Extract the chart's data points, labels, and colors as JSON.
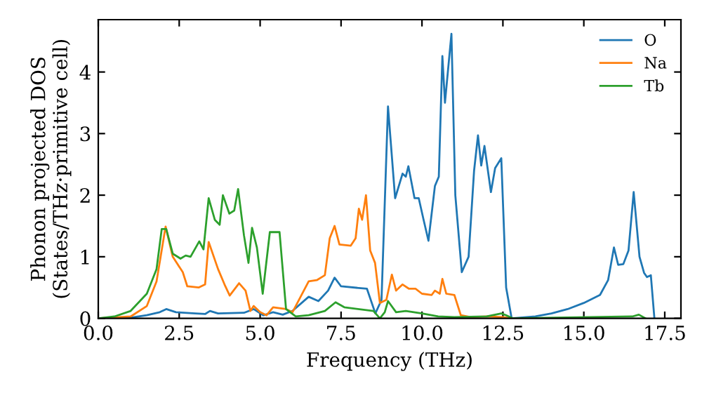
{
  "chart_data": {
    "type": "line",
    "xlabel": "Frequency (THz)",
    "ylabel": "Phonon projected DOS\n(States/THz·primitive cell)",
    "xlim": [
      0,
      18
    ],
    "ylim": [
      0,
      4.85
    ],
    "xticks": [
      {
        "value": 0,
        "label": "0.0"
      },
      2.5,
      {
        "value": 5,
        "label": "5.0"
      },
      7.5,
      {
        "value": 10,
        "label": "10.0"
      },
      12.5,
      {
        "value": 15,
        "label": "15.0"
      },
      17.5
    ],
    "yticks": [
      0,
      1,
      2,
      3,
      4
    ],
    "grid": false,
    "legend": "top right",
    "line_style": "solid",
    "marker": "none",
    "series": [
      {
        "name": "O",
        "color": "#1f77b4",
        "x": [
          0,
          1,
          1.5,
          1.9,
          2.1,
          2.4,
          3,
          3.3,
          3.45,
          3.7,
          4.5,
          4.8,
          5.1,
          5.4,
          5.7,
          6,
          6.5,
          6.8,
          7.1,
          7.3,
          7.5,
          8.3,
          8.56,
          8.75,
          8.95,
          9.17,
          9.4,
          9.5,
          9.58,
          9.77,
          9.9,
          10.05,
          10.2,
          10.4,
          10.52,
          10.63,
          10.71,
          10.91,
          11.03,
          11.23,
          11.44,
          11.61,
          11.73,
          11.83,
          11.93,
          12.13,
          12.26,
          12.45,
          12.6,
          12.77,
          13.5,
          14,
          14.5,
          15,
          15.5,
          15.75,
          15.93,
          16.06,
          16.22,
          16.38,
          16.54,
          16.72,
          16.86,
          16.95,
          17.07,
          17.18
        ],
        "values": [
          0,
          0.01,
          0.05,
          0.1,
          0.15,
          0.1,
          0.08,
          0.07,
          0.12,
          0.08,
          0.09,
          0.15,
          0.05,
          0.1,
          0.06,
          0.12,
          0.35,
          0.28,
          0.45,
          0.66,
          0.52,
          0.48,
          0.08,
          0.3,
          3.44,
          1.95,
          2.35,
          2.3,
          2.47,
          1.95,
          1.95,
          1.6,
          1.26,
          2.15,
          2.3,
          4.26,
          3.5,
          4.62,
          2.0,
          0.75,
          1.0,
          2.4,
          2.97,
          2.48,
          2.8,
          2.05,
          2.44,
          2.6,
          0.5,
          0,
          0.03,
          0.08,
          0.15,
          0.25,
          0.38,
          0.62,
          1.15,
          0.87,
          0.88,
          1.1,
          2.05,
          1.0,
          0.74,
          0.67,
          0.7,
          0
        ]
      },
      {
        "name": "Na",
        "color": "#ff7f0e",
        "x": [
          0,
          1,
          1.5,
          1.8,
          2.08,
          2.3,
          2.61,
          2.75,
          3.1,
          3.3,
          3.41,
          3.7,
          3.9,
          4.06,
          4.35,
          4.55,
          4.7,
          4.8,
          5.0,
          5.2,
          5.4,
          5.8,
          6.0,
          6.5,
          6.75,
          7.0,
          7.15,
          7.3,
          7.45,
          7.8,
          7.95,
          8.05,
          8.15,
          8.27,
          8.4,
          8.55,
          8.7,
          8.9,
          9.07,
          9.2,
          9.4,
          9.6,
          9.8,
          10.0,
          10.3,
          10.4,
          10.55,
          10.63,
          10.75,
          11.0,
          11.2,
          11.5,
          12,
          12.5,
          12.8
        ],
        "values": [
          0,
          0.03,
          0.2,
          0.6,
          1.49,
          1.0,
          0.75,
          0.52,
          0.5,
          0.55,
          1.24,
          0.8,
          0.55,
          0.37,
          0.57,
          0.45,
          0.12,
          0.2,
          0.1,
          0.05,
          0.18,
          0.15,
          0.1,
          0.6,
          0.62,
          0.7,
          1.3,
          1.5,
          1.2,
          1.18,
          1.3,
          1.78,
          1.6,
          2.0,
          1.1,
          0.9,
          0.25,
          0.3,
          0.71,
          0.45,
          0.55,
          0.48,
          0.48,
          0.4,
          0.38,
          0.45,
          0.4,
          0.64,
          0.4,
          0.38,
          0.05,
          0.02,
          0.03,
          0.02,
          0
        ]
      },
      {
        "name": "Tb",
        "color": "#2ca02c",
        "x": [
          0,
          0.5,
          1,
          1.5,
          1.8,
          1.96,
          2.1,
          2.3,
          2.54,
          2.7,
          2.85,
          3.12,
          3.25,
          3.41,
          3.6,
          3.75,
          3.85,
          4.05,
          4.2,
          4.32,
          4.5,
          4.64,
          4.75,
          4.9,
          5.08,
          5.3,
          5.6,
          5.8,
          6.1,
          6.5,
          7.0,
          7.33,
          7.6,
          8.5,
          8.7,
          8.85,
          8.95,
          9.2,
          9.5,
          10,
          10.5,
          11,
          12,
          12.45,
          12.6,
          12.8,
          16.5,
          16.7,
          16.9
        ],
        "values": [
          0,
          0.03,
          0.12,
          0.4,
          0.8,
          1.45,
          1.45,
          1.05,
          0.97,
          1.02,
          1.0,
          1.25,
          1.12,
          1.95,
          1.6,
          1.52,
          2.0,
          1.7,
          1.75,
          2.1,
          1.35,
          0.9,
          1.47,
          1.15,
          0.4,
          1.4,
          1.4,
          0.15,
          0.03,
          0.05,
          0.12,
          0.26,
          0.18,
          0.12,
          0,
          0.1,
          0.28,
          0.1,
          0.12,
          0.08,
          0.03,
          0.02,
          0.03,
          0.08,
          0.05,
          0,
          0.03,
          0.06,
          0
        ]
      }
    ]
  }
}
